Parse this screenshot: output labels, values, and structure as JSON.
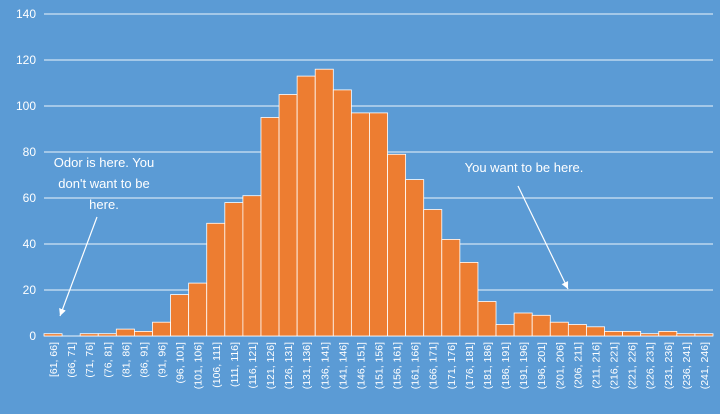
{
  "chart_data": {
    "type": "bar",
    "title": "",
    "xlabel": "",
    "ylabel": "",
    "ylim": [
      0,
      140
    ],
    "yticks": [
      0,
      20,
      40,
      60,
      80,
      100,
      120,
      140
    ],
    "grid": true,
    "legend": "none",
    "colors": {
      "background": "#5b9bd5",
      "bar": "#ed7d31",
      "bar_edge": "#ffffff",
      "grid": "#ffffff",
      "text": "#ffffff"
    },
    "categories": [
      "[61, 66]",
      "(66, 71]",
      "(71, 76]",
      "(76, 81]",
      "(81, 86]",
      "(86, 91]",
      "(91, 96]",
      "(96, 101]",
      "(101, 106]",
      "(106, 111]",
      "(111, 116]",
      "(116, 121]",
      "(121, 126]",
      "(126, 131]",
      "(131, 136]",
      "(136, 141]",
      "(141, 146]",
      "(146, 151]",
      "(151, 156]",
      "(156, 161]",
      "(161, 166]",
      "(166, 171]",
      "(171, 176]",
      "(176, 181]",
      "(181, 186]",
      "(186, 191]",
      "(191, 196]",
      "(196, 201]",
      "(201, 206]",
      "(206, 211]",
      "(211, 216]",
      "(216, 221]",
      "(221, 226]",
      "(226, 231]",
      "(231, 236]",
      "(236, 241]",
      "(241, 246]"
    ],
    "values": [
      1,
      0,
      1,
      1,
      3,
      2,
      6,
      18,
      23,
      49,
      58,
      61,
      95,
      105,
      113,
      116,
      107,
      97,
      97,
      79,
      68,
      55,
      42,
      32,
      15,
      5,
      10,
      9,
      6,
      5,
      4,
      2,
      2,
      1,
      2,
      1,
      1
    ],
    "annotations": [
      {
        "lines": [
          "Odor is here. You",
          "don't want to be",
          "here."
        ],
        "target_category": "[61, 66]"
      },
      {
        "lines": [
          "You want to be here."
        ],
        "target_category": "(206, 211]"
      }
    ]
  }
}
